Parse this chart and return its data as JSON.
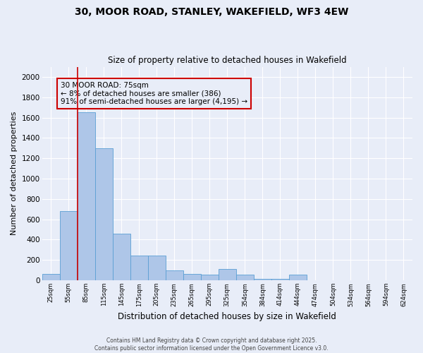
{
  "title_line1": "30, MOOR ROAD, STANLEY, WAKEFIELD, WF3 4EW",
  "title_line2": "Size of property relative to detached houses in Wakefield",
  "xlabel": "Distribution of detached houses by size in Wakefield",
  "ylabel": "Number of detached properties",
  "categories": [
    "25sqm",
    "55sqm",
    "85sqm",
    "115sqm",
    "145sqm",
    "175sqm",
    "205sqm",
    "235sqm",
    "265sqm",
    "295sqm",
    "325sqm",
    "354sqm",
    "384sqm",
    "414sqm",
    "444sqm",
    "474sqm",
    "504sqm",
    "534sqm",
    "564sqm",
    "594sqm",
    "624sqm"
  ],
  "values": [
    65,
    680,
    1650,
    1295,
    455,
    240,
    240,
    95,
    65,
    55,
    110,
    55,
    15,
    15,
    55,
    0,
    0,
    0,
    0,
    0,
    0
  ],
  "bar_color": "#aec6e8",
  "bar_edge_color": "#5a9fd4",
  "vline_pos": 1.5,
  "vline_color": "#cc0000",
  "annotation_text": "30 MOOR ROAD: 75sqm\n← 8% of detached houses are smaller (386)\n91% of semi-detached houses are larger (4,195) →",
  "annotation_box_color": "#cc0000",
  "annotation_text_color": "#000000",
  "ylim": [
    0,
    2100
  ],
  "yticks": [
    0,
    200,
    400,
    600,
    800,
    1000,
    1200,
    1400,
    1600,
    1800,
    2000
  ],
  "background_color": "#e8edf8",
  "grid_color": "#ffffff",
  "footer_line1": "Contains HM Land Registry data © Crown copyright and database right 2025.",
  "footer_line2": "Contains public sector information licensed under the Open Government Licence v3.0."
}
